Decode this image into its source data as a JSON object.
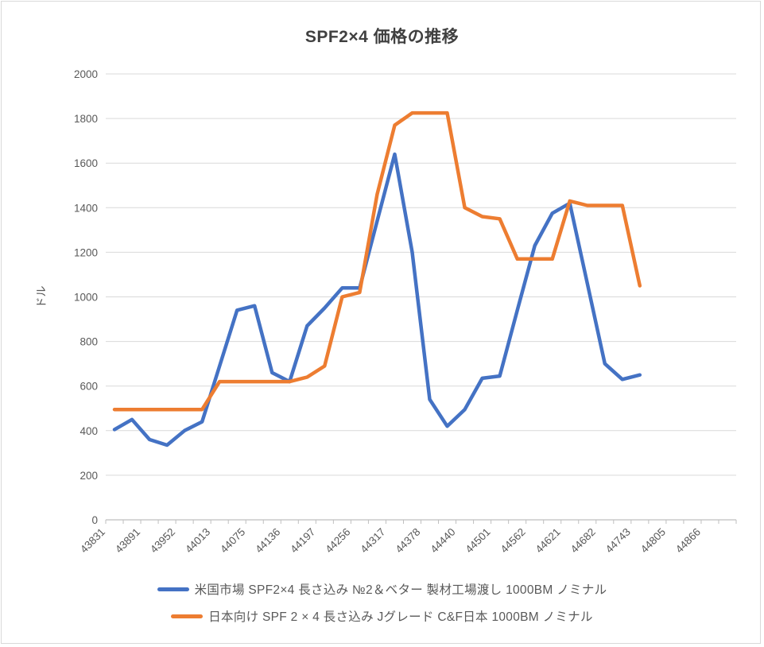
{
  "title": "SPF2×4 価格の推移",
  "chart_data": {
    "type": "line",
    "title": "SPF2×4 価格の推移",
    "xlabel": "",
    "ylabel": "ドル",
    "ylim": [
      0,
      2000
    ],
    "ytick_step": 200,
    "grid": true,
    "legend_position": "bottom",
    "x_total_categories": 36,
    "x_label_interval": 2,
    "x_tick_labels": [
      "43831",
      "43891",
      "43952",
      "44013",
      "44075",
      "44136",
      "44197",
      "44256",
      "44317",
      "44378",
      "44440",
      "44501",
      "44562",
      "44621",
      "44682",
      "44743",
      "44805",
      "44866"
    ],
    "series": [
      {
        "name": "米国市場 SPF2×4 長さ込み №2＆ベター 製材工場渡し 1000BM ノミナル",
        "color": "#4472C4",
        "values": [
          405,
          450,
          360,
          335,
          400,
          440,
          690,
          940,
          960,
          660,
          620,
          870,
          950,
          1040,
          1040,
          1340,
          1640,
          1200,
          540,
          420,
          495,
          635,
          645,
          940,
          1230,
          1375,
          1420,
          1060,
          700,
          630,
          650
        ]
      },
      {
        "name": "日本向け SPF 2 × 4 長さ込み Jグレード C&F日本 1000BM ノミナル",
        "color": "#ED7D31",
        "values": [
          495,
          495,
          495,
          495,
          495,
          495,
          620,
          620,
          620,
          620,
          620,
          640,
          690,
          1000,
          1020,
          1460,
          1770,
          1825,
          1825,
          1825,
          1400,
          1360,
          1350,
          1170,
          1170,
          1170,
          1430,
          1410,
          1410,
          1410,
          1050
        ]
      }
    ],
    "colors": {
      "gridline": "#D9D9D9",
      "axis_line": "#BFBFBF",
      "tick_text": "#595959",
      "title_text": "#404040"
    }
  }
}
